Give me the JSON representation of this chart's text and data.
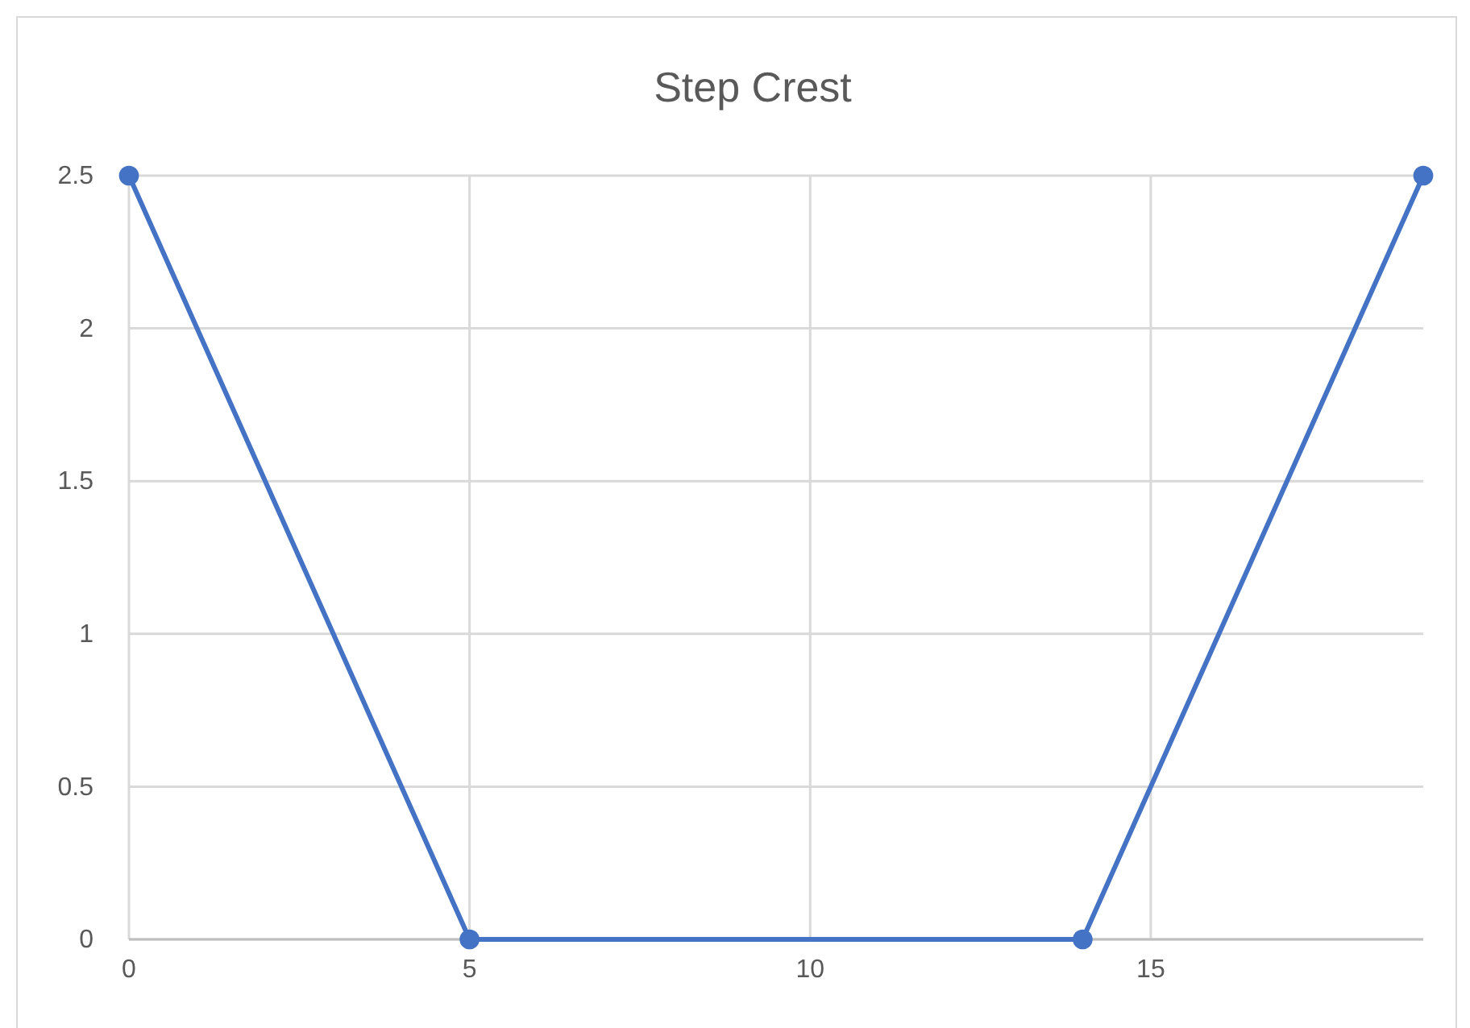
{
  "chart_data": {
    "type": "line",
    "title": "Step Crest",
    "x": [
      0,
      5,
      14,
      19
    ],
    "series": [
      {
        "color": "#4472c4",
        "values": [
          2.5,
          0,
          0,
          2.5
        ]
      }
    ],
    "xlim": [
      0,
      19
    ],
    "xticks": [
      0,
      5,
      10,
      15
    ],
    "ylim": [
      0,
      2.5
    ],
    "yticks": [
      0,
      0.5,
      1,
      1.5,
      2,
      2.5
    ],
    "grid": true,
    "marker": "circle",
    "line_style": "solid"
  }
}
